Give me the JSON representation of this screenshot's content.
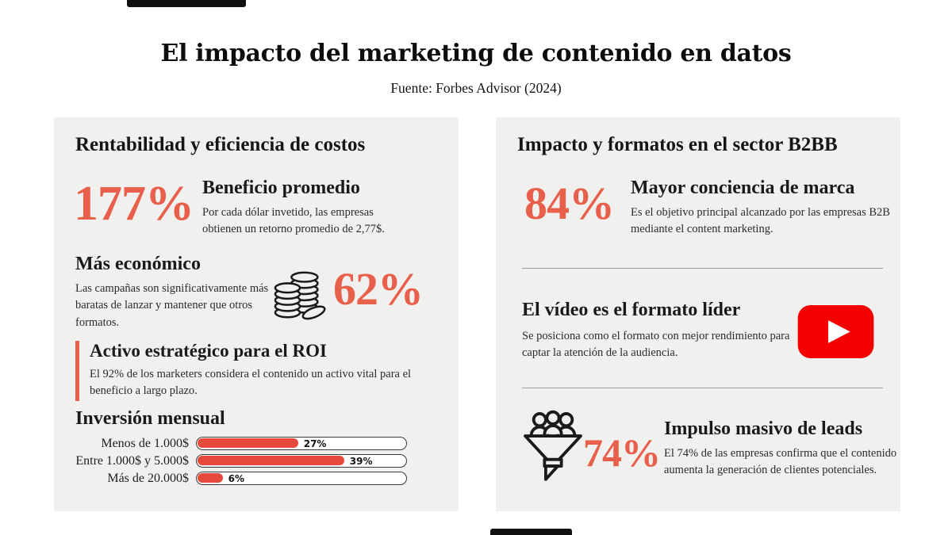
{
  "page": {
    "title": "El impacto del marketing de contenido en datos",
    "subtitle": "Fuente: Forbes Advisor (2024)"
  },
  "colors": {
    "accent": "#E8604C",
    "bar-fill": "#E64A3C",
    "panel-bg": "#F0F0EF",
    "youtube-red": "#F50000",
    "divider": "#9A9A9A",
    "text-dark": "#1B1B1B",
    "text-body": "#2B2B2B"
  },
  "left_panel": {
    "heading": "Rentabilidad y eficiencia de costos",
    "benefit": {
      "value": "177%",
      "title": "Beneficio promedio",
      "description": "Por cada dólar invetido, las empresas obtienen un retorno promedio de 2,77$."
    },
    "economical": {
      "title": "Más económico",
      "description": "Las campañas son significativamente más baratas de lanzar y mantener que otros formatos.",
      "value": "62%",
      "icon": "coins-icon"
    },
    "strategic": {
      "title": "Activo estratégico para el ROI",
      "description": "El 92% de los marketers considera el contenido un activo vital para el beneficio a largo plazo."
    },
    "investment_title": "Inversión mensual"
  },
  "chart_data": {
    "type": "bar",
    "orientation": "horizontal",
    "title": "Inversión mensual",
    "categories": [
      "Menos de 1.000$",
      "Entre 1.000$ y 5.000$",
      "Más de 20.000$"
    ],
    "values": [
      27,
      39,
      6
    ],
    "value_labels": [
      "27%",
      "39%",
      "6%"
    ],
    "fill_pcts": [
      48,
      70,
      12
    ],
    "bar_color": "#E64A3C",
    "track_color": "#FFFFFF",
    "axis": "none",
    "legend": false
  },
  "right_panel": {
    "heading": "Impacto y formatos en el sector B2BB",
    "awareness": {
      "value": "84%",
      "title": "Mayor conciencia de marca",
      "description": "Es el objetivo principal alcanzado por las empresas B2B mediante el content marketing."
    },
    "video": {
      "title": "El vídeo es el formato líder",
      "description": "Se posiciona como el formato con mejor rendimiento para captar la atención de la audiencia.",
      "icon": "youtube-icon"
    },
    "leads": {
      "value": "74%",
      "title": "Impulso masivo de leads",
      "description": "El 74% de las empresas confirma que el contenido aumenta la generación de clientes potenciales.",
      "icon": "funnel-icon"
    }
  }
}
